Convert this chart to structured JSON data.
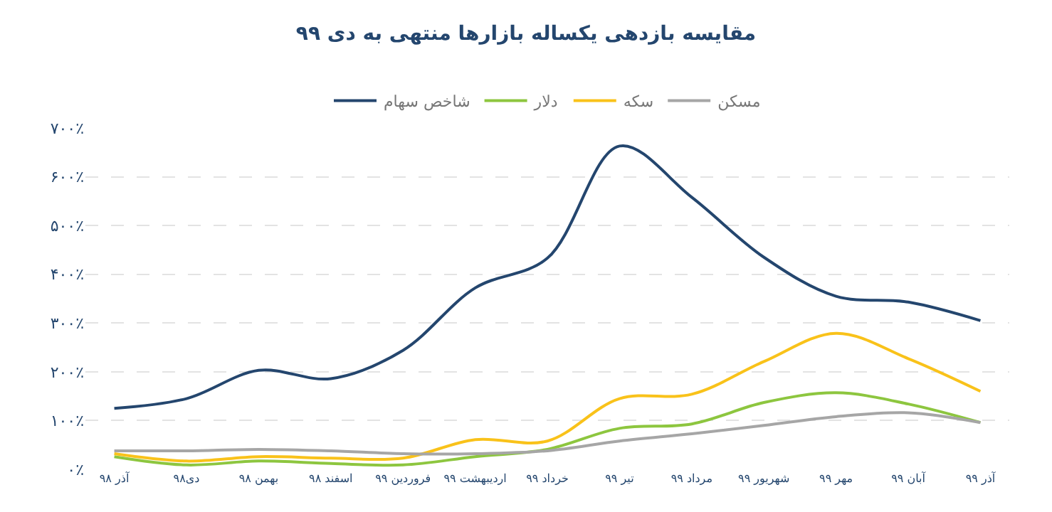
{
  "chart_data": {
    "type": "line",
    "title": "مقایسه بازدهی یکساله بازارها منتهی به دی ۹۹",
    "categories": [
      "آذر ۹۸",
      "دی۹۸",
      "بهمن ۹۸",
      "اسفند ۹۸",
      "فروردین ۹۹",
      "اردیبهشت ۹۹",
      "خرداد ۹۹",
      "تیر ۹۹",
      "مرداد ۹۹",
      "شهریور ۹۹",
      "مهر ۹۹",
      "آبان ۹۹",
      "آذر ۹۹"
    ],
    "series": [
      {
        "name": "شاخص سهام",
        "color": "#24466e",
        "values": [
          125,
          145,
          203,
          186,
          244,
          372,
          433,
          663,
          558,
          435,
          355,
          343,
          305
        ]
      },
      {
        "name": "دلار",
        "color": "#8dc63f",
        "values": [
          26,
          9,
          17,
          12,
          9,
          26,
          41,
          84,
          93,
          137,
          157,
          134,
          96
        ]
      },
      {
        "name": "سکه",
        "color": "#f9c21a",
        "values": [
          32,
          17,
          26,
          23,
          23,
          61,
          58,
          145,
          154,
          221,
          279,
          227,
          160
        ]
      },
      {
        "name": "مسکن",
        "color": "#a6a6a6",
        "values": [
          38,
          38,
          41,
          38,
          32,
          32,
          38,
          58,
          73,
          90,
          108,
          116,
          96
        ]
      }
    ],
    "ylim": [
      0,
      700
    ],
    "yticks": [
      {
        "value": 0,
        "label": "۰٪"
      },
      {
        "value": 100,
        "label": "۱۰۰٪"
      },
      {
        "value": 200,
        "label": "۲۰۰٪"
      },
      {
        "value": 300,
        "label": "۳۰۰٪"
      },
      {
        "value": 400,
        "label": "۴۰۰٪"
      },
      {
        "value": 500,
        "label": "۵۰۰٪"
      },
      {
        "value": 600,
        "label": "۶۰۰٪"
      },
      {
        "value": 700,
        "label": "۷۰۰٪"
      }
    ],
    "grid": "y",
    "legend": "top",
    "marker": "none",
    "line_style": "solid"
  }
}
